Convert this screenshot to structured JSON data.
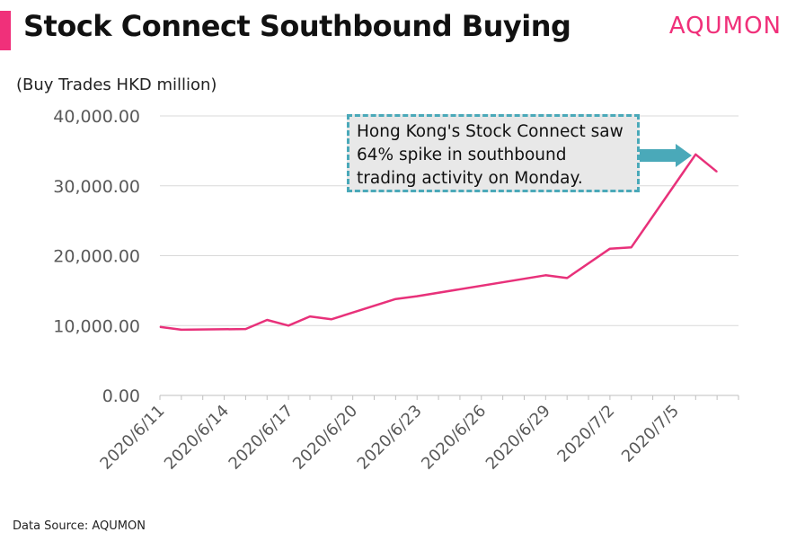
{
  "header": {
    "title": "Stock Connect Southbound Buying",
    "brand": "AQUMON"
  },
  "colors": {
    "accent": "#f0307a",
    "line": "#e8317a",
    "callout_border": "#4aa9b9",
    "arrow": "#4aa9b9",
    "grid": "#d9d9d9"
  },
  "unit_label": "(Buy Trades HKD million)",
  "callout": {
    "text": "Hong Kong's Stock Connect saw 64% spike in southbound trading activity on Monday."
  },
  "source": "Data Source: AQUMON",
  "chart_data": {
    "type": "line",
    "title": "Stock Connect Southbound Buying",
    "ylabel": "(Buy Trades HKD million)",
    "xlabel": "",
    "ylim": [
      0,
      40000
    ],
    "y_ticks": [
      "0.00",
      "10,000.00",
      "20,000.00",
      "30,000.00",
      "40,000.00"
    ],
    "y_tick_values": [
      0,
      10000,
      20000,
      30000,
      40000
    ],
    "x_tick_labels": [
      "2020/6/11",
      "2020/6/14",
      "2020/6/17",
      "2020/6/20",
      "2020/6/23",
      "2020/6/26",
      "2020/6/29",
      "2020/7/2",
      "2020/7/5"
    ],
    "x_tick_dates": [
      "2020-06-11",
      "2020-06-14",
      "2020-06-17",
      "2020-06-20",
      "2020-06-23",
      "2020-06-26",
      "2020-06-29",
      "2020-07-02",
      "2020-07-05"
    ],
    "xlim": [
      "2020-06-11",
      "2020-07-08"
    ],
    "grid": true,
    "series": [
      {
        "x": [
          "2020-06-11",
          "2020-06-12",
          "2020-06-15",
          "2020-06-16",
          "2020-06-17",
          "2020-06-18",
          "2020-06-19",
          "2020-06-22",
          "2020-06-23",
          "2020-06-29",
          "2020-06-30",
          "2020-07-02",
          "2020-07-03",
          "2020-07-06",
          "2020-07-07"
        ],
        "values": [
          9800,
          9400,
          9500,
          10800,
          10000,
          11300,
          10900,
          13800,
          14200,
          17200,
          16800,
          21000,
          21200,
          34500,
          32000
        ]
      }
    ]
  }
}
